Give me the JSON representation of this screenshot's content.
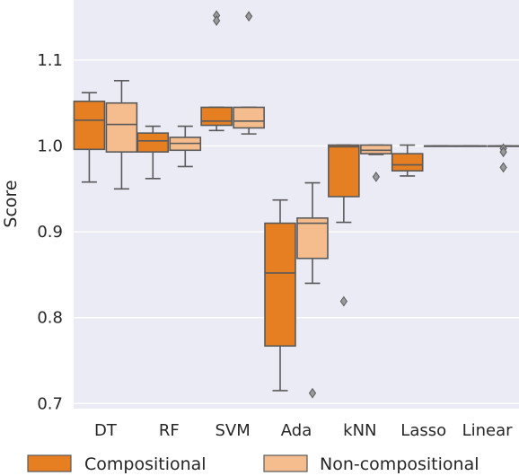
{
  "chart_data": {
    "type": "box",
    "ylabel": "Score",
    "xlabel": "",
    "ylim": [
      0.694,
      1.17
    ],
    "y_ticks": [
      0.7,
      0.8,
      0.9,
      1.0,
      1.1
    ],
    "y_tick_labels": [
      "0.7",
      "0.8",
      "0.9",
      "1.0",
      "1.1"
    ],
    "categories": [
      "DT",
      "RF",
      "SVM",
      "Ada",
      "kNN",
      "Lasso",
      "Linear"
    ],
    "grid": true,
    "legend_position": "bottom",
    "series": [
      {
        "name": "Compositional",
        "color": "#E67E22",
        "boxes": [
          {
            "category": "DT",
            "whisker_low": 0.958,
            "q1": 0.996,
            "median": 1.03,
            "q3": 1.052,
            "whisker_high": 1.062,
            "outliers": []
          },
          {
            "category": "RF",
            "whisker_low": 0.962,
            "q1": 0.993,
            "median": 1.006,
            "q3": 1.015,
            "whisker_high": 1.023,
            "outliers": []
          },
          {
            "category": "SVM",
            "whisker_low": 1.018,
            "q1": 1.024,
            "median": 1.029,
            "q3": 1.045,
            "whisker_high": 1.045,
            "outliers": [
              1.152,
              1.146
            ]
          },
          {
            "category": "Ada",
            "whisker_low": 0.715,
            "q1": 0.767,
            "median": 0.852,
            "q3": 0.91,
            "whisker_high": 0.937,
            "outliers": []
          },
          {
            "category": "kNN",
            "whisker_low": 0.911,
            "q1": 0.941,
            "median": 0.999,
            "q3": 1.001,
            "whisker_high": 1.001,
            "outliers": [
              0.819
            ]
          },
          {
            "category": "Lasso",
            "whisker_low": 0.965,
            "q1": 0.971,
            "median": 0.978,
            "q3": 0.991,
            "whisker_high": 1.001,
            "outliers": []
          },
          {
            "category": "Linear",
            "whisker_low": 1.0,
            "q1": 1.0,
            "median": 1.0,
            "q3": 1.0,
            "whisker_high": 1.0,
            "outliers": []
          }
        ]
      },
      {
        "name": "Non-compositional",
        "color": "#F5BC8E",
        "boxes": [
          {
            "category": "DT",
            "whisker_low": 0.95,
            "q1": 0.993,
            "median": 1.025,
            "q3": 1.05,
            "whisker_high": 1.076,
            "outliers": []
          },
          {
            "category": "RF",
            "whisker_low": 0.976,
            "q1": 0.995,
            "median": 1.003,
            "q3": 1.01,
            "whisker_high": 1.023,
            "outliers": []
          },
          {
            "category": "SVM",
            "whisker_low": 1.014,
            "q1": 1.021,
            "median": 1.029,
            "q3": 1.045,
            "whisker_high": 1.045,
            "outliers": [
              1.151
            ]
          },
          {
            "category": "Ada",
            "whisker_low": 0.84,
            "q1": 0.869,
            "median": 0.91,
            "q3": 0.916,
            "whisker_high": 0.957,
            "outliers": [
              0.712
            ]
          },
          {
            "category": "kNN",
            "whisker_low": 0.99,
            "q1": 0.991,
            "median": 0.995,
            "q3": 1.001,
            "whisker_high": 1.001,
            "outliers": [
              0.964
            ]
          },
          {
            "category": "Lasso",
            "whisker_low": 1.0,
            "q1": 1.0,
            "median": 1.0,
            "q3": 1.0,
            "whisker_high": 1.0,
            "outliers": []
          },
          {
            "category": "Linear",
            "whisker_low": 1.0,
            "q1": 1.0,
            "median": 1.0,
            "q3": 1.0,
            "whisker_high": 1.0,
            "outliers": [
              0.997,
              0.993,
              0.975
            ]
          }
        ]
      }
    ]
  },
  "legend": {
    "items": [
      {
        "label": "Compositional",
        "color": "#E67E22"
      },
      {
        "label": "Non-compositional",
        "color": "#F5BC8E"
      }
    ]
  },
  "colors": {
    "plot_background": "#ebebf5",
    "grid": "#ffffff",
    "box_edge": "#5a5a5a"
  }
}
